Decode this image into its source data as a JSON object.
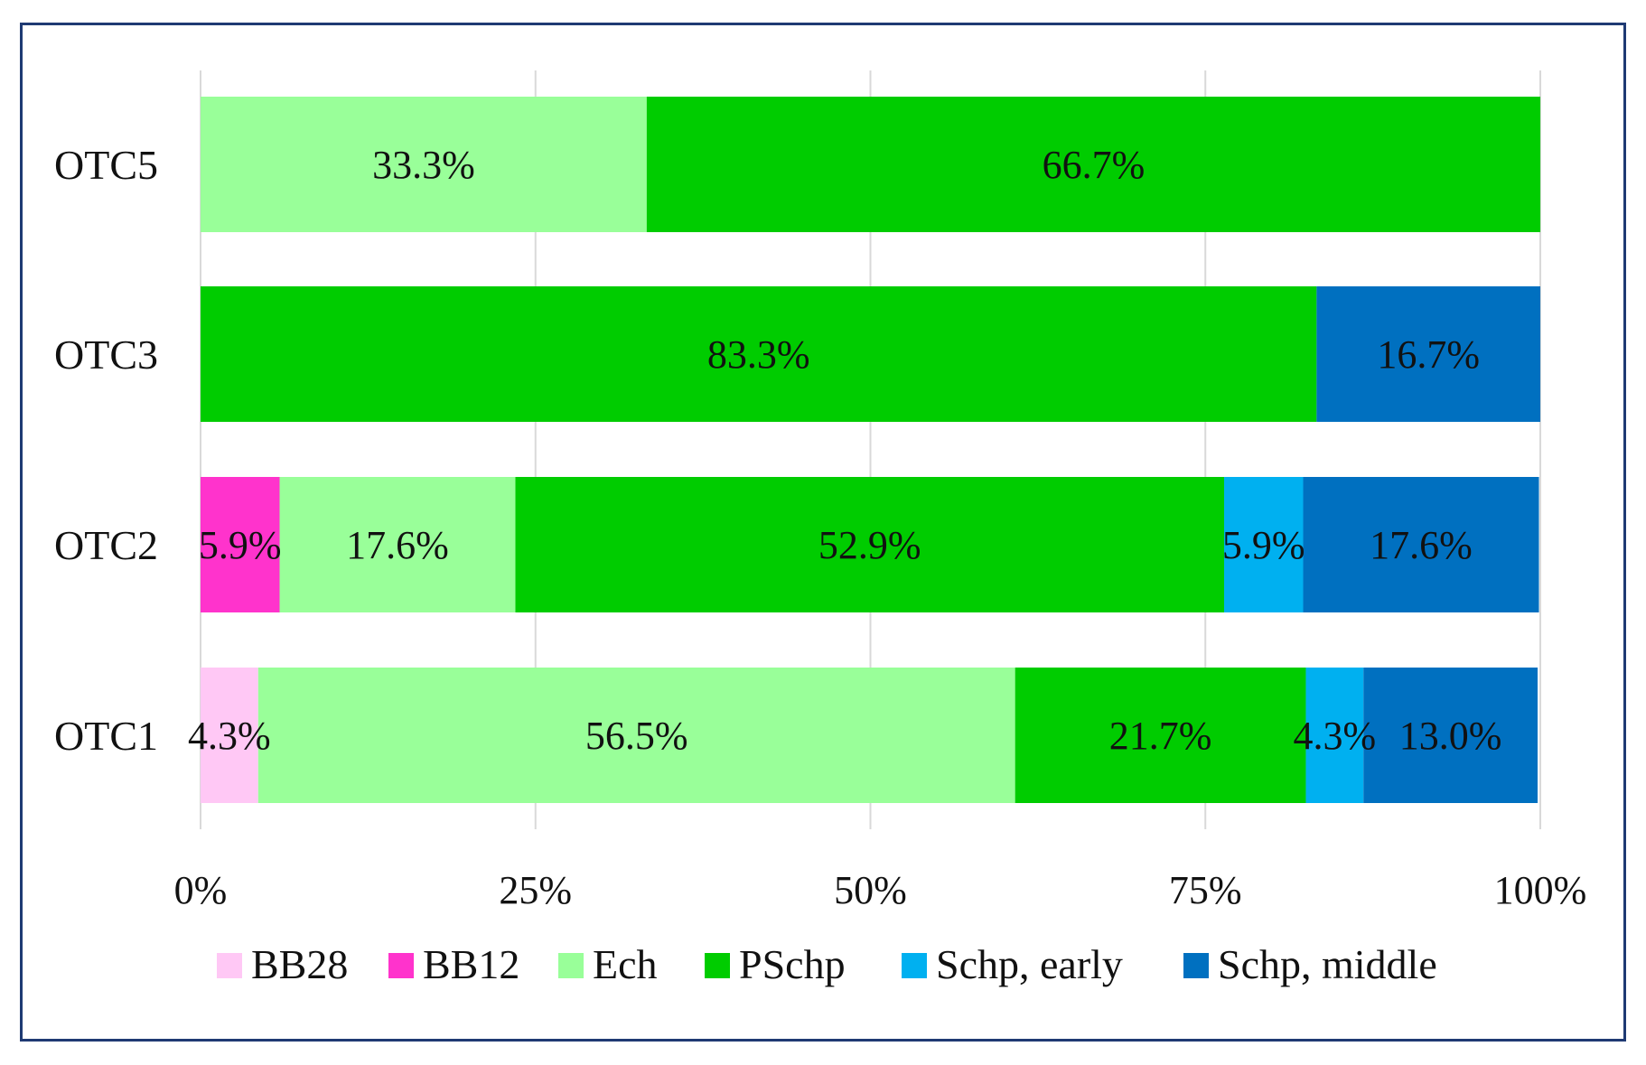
{
  "chart_data": {
    "type": "bar",
    "orientation": "horizontal",
    "stacked": "percent",
    "title": "",
    "xlabel": "",
    "ylabel": "",
    "xlim": [
      0,
      100
    ],
    "x_ticks": [
      "0%",
      "25%",
      "50%",
      "75%",
      "100%"
    ],
    "grid": "vertical",
    "legend_position": "bottom",
    "categories": [
      "OTC5",
      "OTC3",
      "OTC2",
      "OTC1"
    ],
    "series": [
      {
        "name": "BB28",
        "color": "#ffc8f5",
        "values": [
          0,
          0,
          0,
          4.3
        ],
        "labels": [
          "",
          "",
          "",
          "4.3%"
        ]
      },
      {
        "name": "BB12",
        "color": "#ff33cc",
        "values": [
          0,
          0,
          5.9,
          0
        ],
        "labels": [
          "",
          "",
          "5.9%",
          ""
        ]
      },
      {
        "name": "Ech",
        "color": "#99ff99",
        "values": [
          33.3,
          0,
          17.6,
          56.5
        ],
        "labels": [
          "33.3%",
          "",
          "17.6%",
          "56.5%"
        ]
      },
      {
        "name": "PSchp",
        "color": "#00cc00",
        "values": [
          66.7,
          83.3,
          52.9,
          21.7
        ],
        "labels": [
          "66.7%",
          "83.3%",
          "52.9%",
          "21.7%"
        ]
      },
      {
        "name": "Schp, early",
        "color": "#00b0f0",
        "values": [
          0,
          0,
          5.9,
          4.3
        ],
        "labels": [
          "",
          "",
          "5.9%",
          "4.3%"
        ]
      },
      {
        "name": "Schp, middle",
        "color": "#0070c0",
        "values": [
          0,
          16.7,
          17.6,
          13.0
        ],
        "labels": [
          "",
          "16.7%",
          "17.6%",
          "13.0%"
        ]
      }
    ]
  }
}
